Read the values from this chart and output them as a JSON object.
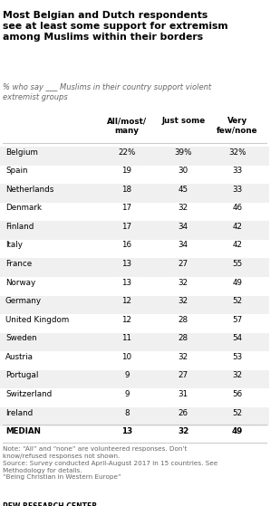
{
  "title": "Most Belgian and Dutch respondents\nsee at least some support for extremism\namong Muslims within their borders",
  "subtitle": "% who say ___ Muslims in their country support violent\nextremist groups",
  "col_headers": [
    "All/most/\nmany",
    "Just some",
    "Very\nfew/none"
  ],
  "countries": [
    "Belgium",
    "Spain",
    "Netherlands",
    "Denmark",
    "Finland",
    "Italy",
    "France",
    "Norway",
    "Germany",
    "United Kingdom",
    "Sweden",
    "Austria",
    "Portugal",
    "Switzerland",
    "Ireland",
    "MEDIAN"
  ],
  "col1": [
    "22%",
    "19",
    "18",
    "17",
    "17",
    "16",
    "13",
    "13",
    "12",
    "12",
    "11",
    "10",
    "9",
    "9",
    "8",
    "13"
  ],
  "col2": [
    "39%",
    "30",
    "45",
    "32",
    "34",
    "34",
    "27",
    "32",
    "32",
    "28",
    "28",
    "32",
    "27",
    "31",
    "26",
    "32"
  ],
  "col3": [
    "32%",
    "33",
    "33",
    "46",
    "42",
    "42",
    "55",
    "49",
    "52",
    "57",
    "54",
    "53",
    "32",
    "56",
    "52",
    "49"
  ],
  "note": "Note: “All” and “none” are volunteered responses. Don’t\nknow/refused responses not shown.\nSource: Survey conducted April-August 2017 in 15 countries. See\nMethodology for details.\n“Being Christian in Western Europe”",
  "source_bold": "PEW RESEARCH CENTER",
  "bg_color": "#ffffff",
  "title_color": "#000000",
  "subtitle_color": "#666666",
  "header_color": "#000000",
  "row_color": "#000000",
  "note_color": "#666666",
  "separator_color": "#cccccc"
}
